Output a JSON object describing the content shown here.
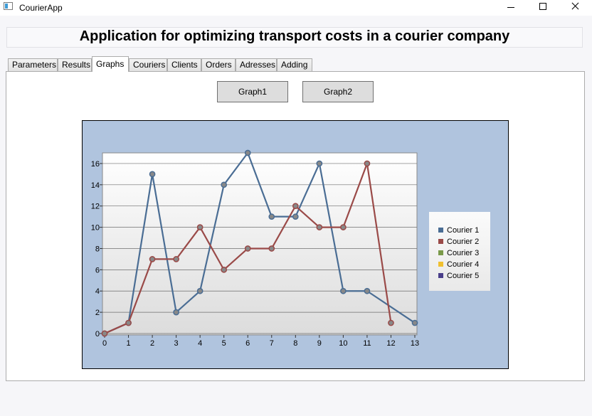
{
  "window": {
    "title": "CourierApp"
  },
  "header": {
    "title": "Application for optimizing transport costs in a courier company"
  },
  "tabs": [
    "Parameters",
    "Results",
    "Graphs",
    "Couriers",
    "Clients",
    "Orders",
    "Adresses",
    "Adding"
  ],
  "active_tab": "Graphs",
  "buttons": {
    "graph1": "Graph1",
    "graph2": "Graph2"
  },
  "chart_data": {
    "type": "line",
    "x": [
      0,
      1,
      2,
      3,
      4,
      5,
      6,
      7,
      8,
      9,
      10,
      11,
      12,
      13
    ],
    "xlim": [
      0,
      13
    ],
    "ylim": [
      0,
      17
    ],
    "yticks": [
      0,
      2,
      4,
      6,
      8,
      10,
      12,
      14,
      16
    ],
    "grid": true,
    "legend_position": "right",
    "background": "#b0c4de",
    "series": [
      {
        "name": "Courier 1",
        "color": "#4a6d94",
        "points": [
          [
            0,
            0
          ],
          [
            1,
            1
          ],
          [
            2,
            15
          ],
          [
            3,
            2
          ],
          [
            4,
            4
          ],
          [
            5,
            14
          ],
          [
            6,
            17
          ],
          [
            7,
            11
          ],
          [
            8,
            11
          ],
          [
            9,
            16
          ],
          [
            10,
            4
          ],
          [
            11,
            4
          ],
          [
            13,
            1
          ]
        ]
      },
      {
        "name": "Courier 2",
        "color": "#9a4a48",
        "points": [
          [
            0,
            0
          ],
          [
            1,
            1
          ],
          [
            2,
            7
          ],
          [
            3,
            7
          ],
          [
            4,
            10
          ],
          [
            5,
            6
          ],
          [
            6,
            8
          ],
          [
            7,
            8
          ],
          [
            8,
            12
          ],
          [
            9,
            10
          ],
          [
            10,
            10
          ],
          [
            11,
            16
          ],
          [
            12,
            1
          ]
        ]
      },
      {
        "name": "Courier 3",
        "color": "#7a9a4a",
        "points": []
      },
      {
        "name": "Courier 4",
        "color": "#f0c030",
        "points": []
      },
      {
        "name": "Courier 5",
        "color": "#4a3f8a",
        "points": []
      }
    ]
  }
}
